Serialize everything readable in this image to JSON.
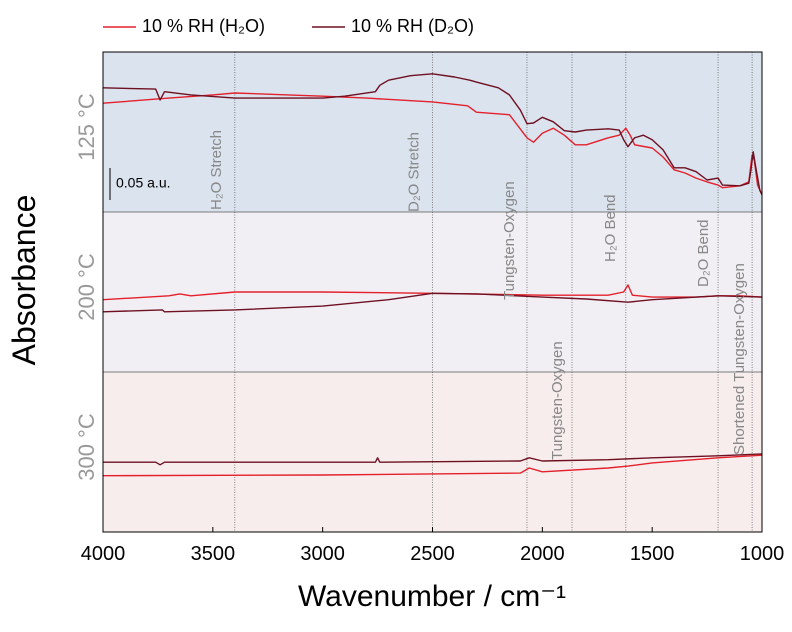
{
  "chart_data": {
    "type": "line",
    "xlabel": "Wavenumber / cm⁻¹",
    "ylabel": "Absorbance",
    "xlim": [
      4000,
      1000
    ],
    "xticks": [
      4000,
      3500,
      3000,
      2500,
      2000,
      1500,
      1000
    ],
    "series": [
      {
        "name": "10 % RH (H₂O)",
        "color": "#e3202b"
      },
      {
        "name": "10 % RH (D₂O)",
        "color": "#6e1022"
      }
    ],
    "scale_bar": {
      "value": 0.05,
      "label": "0.05 a.u."
    },
    "annotations": [
      {
        "x": 3400,
        "text": "H₂O Stretch"
      },
      {
        "x": 2500,
        "text": "D₂O Stretch"
      },
      {
        "x": 2070,
        "text": "Tungsten-Oxygen"
      },
      {
        "x": 1865,
        "text": "Tungsten-Oxygen"
      },
      {
        "x": 1620,
        "text": "H₂O Bend"
      },
      {
        "x": 1200,
        "text": "D₂O Bend"
      },
      {
        "x": 1045,
        "text": "Shortened Tungsten-Oxygen"
      }
    ],
    "panels": [
      {
        "label": "125 °C",
        "background": "#dbe3ee",
        "ylim": [
          0,
          0.25
        ],
        "series": [
          {
            "x": [
              4000,
              3700,
              3500,
              3400,
              3000,
              2800,
              2500,
              2340,
              2300,
              2150,
              2070,
              2040,
              2000,
              1950,
              1900,
              1850,
              1800,
              1700,
              1650,
              1620,
              1600,
              1580,
              1500,
              1450,
              1400,
              1350,
              1300,
              1250,
              1200,
              1180,
              1100,
              1060,
              1045,
              1035,
              1020,
              1000
            ],
            "values": [
              0.17,
              0.178,
              0.183,
              0.186,
              0.181,
              0.178,
              0.172,
              0.166,
              0.156,
              0.152,
              0.116,
              0.109,
              0.123,
              0.131,
              0.12,
              0.105,
              0.105,
              0.116,
              0.12,
              0.131,
              0.12,
              0.105,
              0.1,
              0.086,
              0.066,
              0.061,
              0.053,
              0.047,
              0.042,
              0.038,
              0.041,
              0.047,
              0.089,
              0.081,
              0.042,
              0.027
            ]
          },
          {
            "x": [
              4000,
              3760,
              3740,
              3720,
              3600,
              3400,
              3000,
              2900,
              2760,
              2740,
              2700,
              2600,
              2500,
              2400,
              2330,
              2300,
              2200,
              2150,
              2100,
              2070,
              2040,
              2000,
              1950,
              1900,
              1850,
              1800,
              1700,
              1650,
              1630,
              1610,
              1580,
              1540,
              1500,
              1450,
              1400,
              1350,
              1300,
              1250,
              1200,
              1180,
              1100,
              1060,
              1050,
              1040,
              1030,
              1010,
              1000
            ],
            "values": [
              0.194,
              0.192,
              0.175,
              0.188,
              0.183,
              0.178,
              0.178,
              0.181,
              0.188,
              0.198,
              0.206,
              0.213,
              0.216,
              0.211,
              0.206,
              0.203,
              0.194,
              0.183,
              0.159,
              0.138,
              0.139,
              0.148,
              0.141,
              0.127,
              0.125,
              0.128,
              0.13,
              0.128,
              0.113,
              0.102,
              0.116,
              0.12,
              0.113,
              0.097,
              0.069,
              0.069,
              0.063,
              0.05,
              0.053,
              0.042,
              0.041,
              0.045,
              0.066,
              0.094,
              0.073,
              0.034,
              0.027
            ]
          }
        ]
      },
      {
        "label": "200 °C",
        "background": "#f1eff4",
        "ylim": [
          0,
          0.25
        ],
        "series": [
          {
            "x": [
              4000,
              3700,
              3650,
              3600,
              3400,
              3000,
              2500,
              2000,
              1700,
              1630,
              1610,
              1590,
              1500,
              1300,
              1200,
              1100,
              1000
            ],
            "values": [
              0.113,
              0.119,
              0.122,
              0.119,
              0.125,
              0.125,
              0.123,
              0.12,
              0.12,
              0.125,
              0.136,
              0.12,
              0.117,
              0.117,
              0.119,
              0.119,
              0.117
            ]
          },
          {
            "x": [
              4000,
              3730,
              3720,
              3400,
              3000,
              2700,
              2500,
              2300,
              2000,
              1800,
              1610,
              1500,
              1200,
              1000
            ],
            "values": [
              0.094,
              0.097,
              0.094,
              0.097,
              0.103,
              0.113,
              0.123,
              0.122,
              0.117,
              0.114,
              0.109,
              0.113,
              0.119,
              0.117
            ]
          }
        ]
      },
      {
        "label": "300 °C",
        "background": "#f8eded",
        "ylim": [
          0,
          0.25
        ],
        "series": [
          {
            "x": [
              4000,
              3000,
              2100,
              2060,
              2000,
              1700,
              1610,
              1500,
              1200,
              1000
            ],
            "values": [
              0.088,
              0.089,
              0.092,
              0.1,
              0.094,
              0.1,
              0.103,
              0.108,
              0.116,
              0.12
            ]
          },
          {
            "x": [
              4000,
              3760,
              3740,
              3720,
              3000,
              2760,
              2750,
              2740,
              2100,
              2060,
              2000,
              1700,
              1500,
              1200,
              1000
            ],
            "values": [
              0.109,
              0.109,
              0.105,
              0.109,
              0.109,
              0.109,
              0.116,
              0.109,
              0.111,
              0.116,
              0.111,
              0.113,
              0.116,
              0.119,
              0.122
            ]
          }
        ]
      }
    ]
  }
}
